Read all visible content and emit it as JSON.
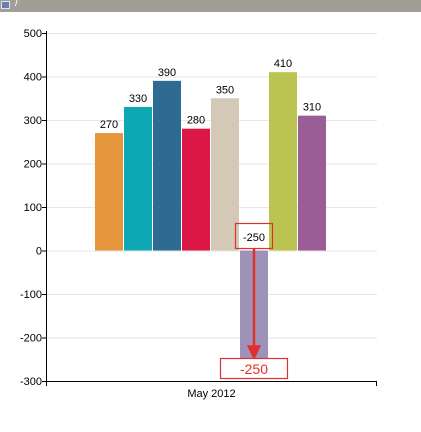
{
  "window": {
    "title": "/"
  },
  "chart_data": {
    "type": "bar",
    "categories": [
      "May 2012"
    ],
    "series": [
      {
        "values": [
          270
        ],
        "color": "#e5963d"
      },
      {
        "values": [
          330
        ],
        "color": "#0ea8b4"
      },
      {
        "values": [
          390
        ],
        "color": "#2e6b93"
      },
      {
        "values": [
          280
        ],
        "color": "#dc1745"
      },
      {
        "values": [
          350
        ],
        "color": "#d4c8b6"
      },
      {
        "values": [
          -250
        ],
        "color": "#9f92b8"
      },
      {
        "values": [
          410
        ],
        "color": "#bcc451"
      },
      {
        "values": [
          310
        ],
        "color": "#9a5d96"
      }
    ],
    "ylim": [
      -300,
      500
    ],
    "yticks": [
      -300,
      -200,
      -100,
      0,
      100,
      200,
      300,
      400,
      500
    ],
    "ytick_labels": [
      "-300",
      "-200",
      "-100",
      "0",
      "100",
      "200",
      "300",
      "400",
      "500"
    ],
    "grid": true,
    "title": "",
    "xlabel": "",
    "ylabel": "",
    "annotation": {
      "top_label": "-250",
      "bottom_label": "-250",
      "color": "#e0302a"
    }
  }
}
